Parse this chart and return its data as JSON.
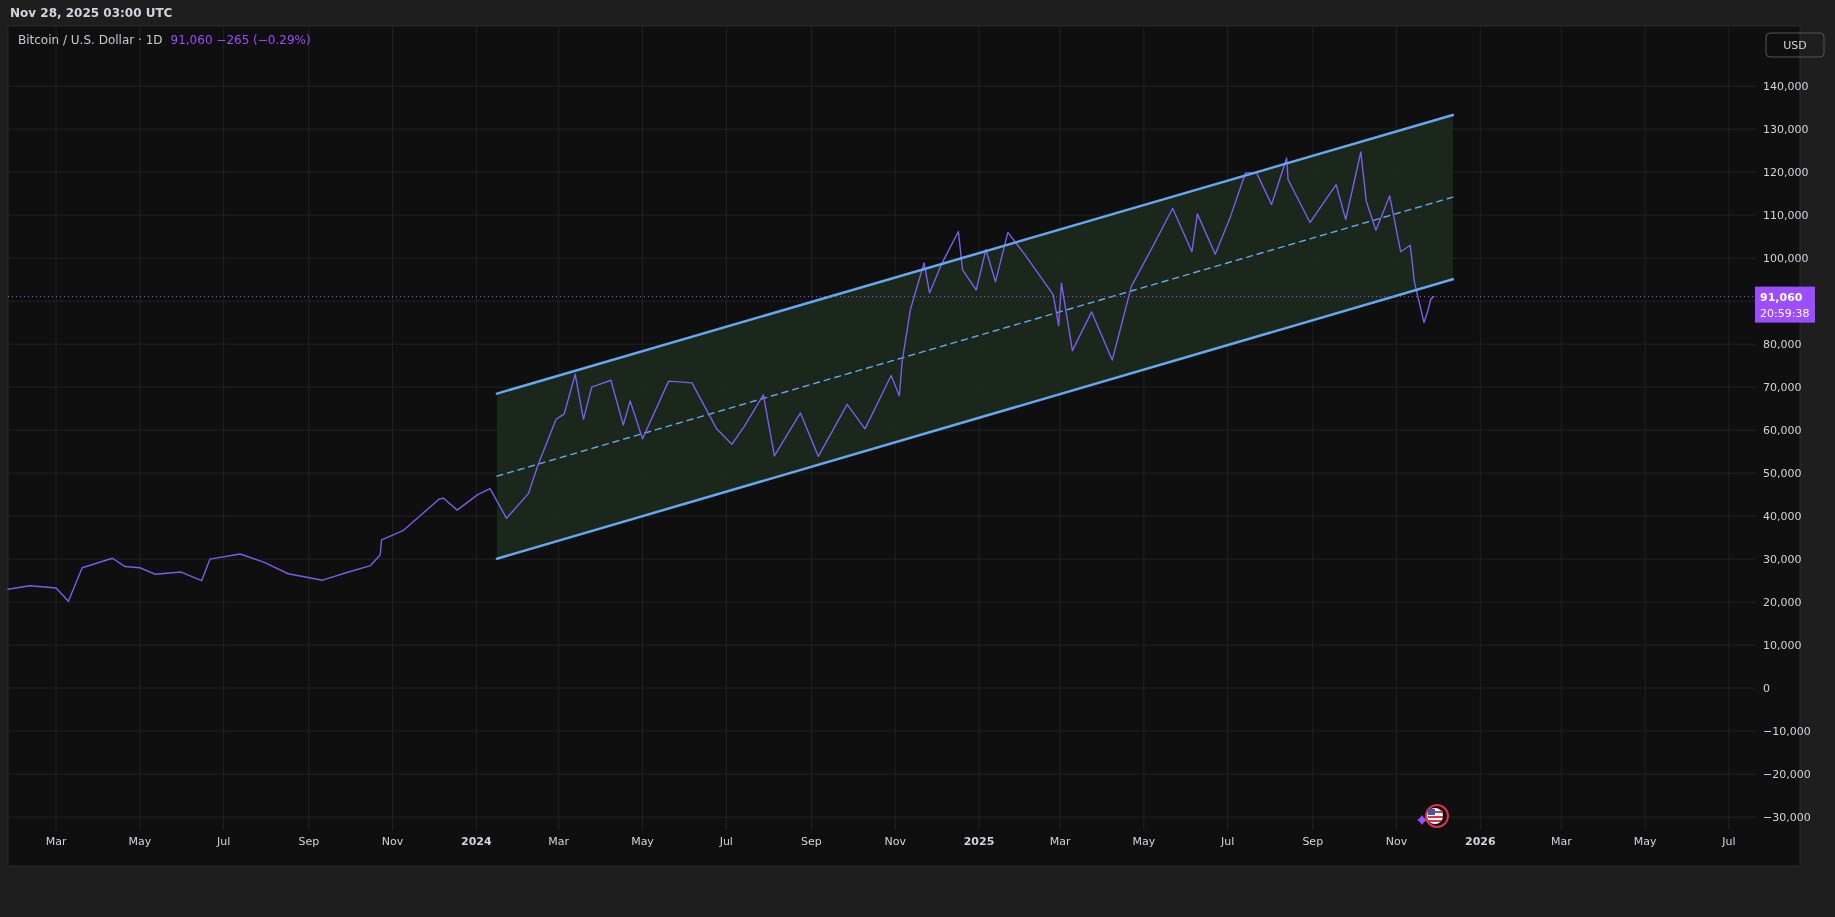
{
  "chart_data": {
    "type": "line",
    "title": "Bitcoin / U.S. Dollar · 1D",
    "subtitle": "91,060 −265 (−0.29%)",
    "annotations": [
      "Nov 28, 2025 03:00 UTC",
      "USD",
      "20:59:38"
    ],
    "x": [
      "2023-01-25",
      "2023-02-10",
      "2023-03-01",
      "2023-03-10",
      "2023-03-20",
      "2023-04-11",
      "2023-04-20",
      "2023-05-01",
      "2023-05-12",
      "2023-05-31",
      "2023-06-15",
      "2023-06-21",
      "2023-07-13",
      "2023-07-31",
      "2023-08-17",
      "2023-09-11",
      "2023-09-30",
      "2023-10-16",
      "2023-10-23",
      "2023-10-24",
      "2023-11-09",
      "2023-12-05",
      "2023-12-08",
      "2023-12-18",
      "2024-01-02",
      "2024-01-11",
      "2024-01-23",
      "2024-02-08",
      "2024-02-15",
      "2024-02-28",
      "2024-03-05",
      "2024-03-13",
      "2024-03-19",
      "2024-03-25",
      "2024-04-08",
      "2024-04-17",
      "2024-04-22",
      "2024-05-01",
      "2024-05-20",
      "2024-06-06",
      "2024-06-24",
      "2024-07-05",
      "2024-07-14",
      "2024-07-28",
      "2024-08-05",
      "2024-08-24",
      "2024-09-06",
      "2024-09-27",
      "2024-10-10",
      "2024-10-29",
      "2024-11-04",
      "2024-11-06",
      "2024-11-12",
      "2024-11-22",
      "2024-11-26",
      "2024-12-05",
      "2024-12-17",
      "2024-12-20",
      "2024-12-30",
      "2025-01-06",
      "2025-01-13",
      "2025-01-22",
      "2025-02-03",
      "2025-02-24",
      "2025-02-28",
      "2025-03-02",
      "2025-03-10",
      "2025-03-24",
      "2025-04-08",
      "2025-04-22",
      "2025-05-08",
      "2025-05-22",
      "2025-06-05",
      "2025-06-09",
      "2025-06-22",
      "2025-07-03",
      "2025-07-14",
      "2025-07-22",
      "2025-08-02",
      "2025-08-13",
      "2025-08-14",
      "2025-08-30",
      "2025-09-18",
      "2025-09-25",
      "2025-10-06",
      "2025-10-10",
      "2025-10-17",
      "2025-10-27",
      "2025-11-04",
      "2025-11-11",
      "2025-11-14",
      "2025-11-21",
      "2025-11-24",
      "2025-11-26",
      "2025-11-28"
    ],
    "series": [
      {
        "color": "#7b5cec",
        "values": [
          23000,
          23800,
          23300,
          20200,
          28000,
          30200,
          28300,
          28000,
          26500,
          27000,
          25000,
          30000,
          31200,
          29200,
          26600,
          25100,
          27000,
          28500,
          31000,
          34500,
          36700,
          44000,
          44200,
          41400,
          45000,
          46400,
          39500,
          45300,
          52000,
          62500,
          63800,
          73000,
          62500,
          70000,
          71600,
          61200,
          66800,
          58000,
          71400,
          71000,
          60300,
          56700,
          60800,
          68200,
          54000,
          64000,
          53900,
          66000,
          60300,
          72700,
          68000,
          75900,
          88000,
          98900,
          91900,
          98800,
          106200,
          97300,
          92600,
          102000,
          94500,
          106000,
          101000,
          91500,
          84300,
          94200,
          78500,
          87500,
          76300,
          93500,
          103000,
          111600,
          101500,
          110300,
          100900,
          109600,
          119800,
          119900,
          112500,
          123300,
          118300,
          108300,
          117100,
          109000,
          124700,
          113200,
          106500,
          114500,
          101500,
          103000,
          94500,
          85000,
          88000,
          90500,
          91060
        ]
      },
      {
        "type": "line",
        "x": [
          "2024-01-16",
          "2025-12-12"
        ],
        "color": "#64a8f0",
        "line_style": "dashed",
        "values": [
          49300,
          114200
        ],
        "lower": [
          30100,
          95100
        ],
        "upper": [
          68500,
          133300
        ]
      },
      {
        "type": "line",
        "x": [
          "2024-01-16",
          "2025-12-12"
        ],
        "color": "#64a8f0",
        "line_style": "solid",
        "values": [
          68500,
          133300
        ]
      },
      {
        "type": "line",
        "x": [
          "2024-01-16",
          "2025-12-12"
        ],
        "color": "#64a8f0",
        "line_style": "solid",
        "values": [
          30100,
          95100
        ]
      }
    ],
    "xlim": [
      "2023-01-25",
      "2026-07-20"
    ],
    "ylim": [
      -33000,
      154000
    ],
    "xticks": [
      {
        "value": "2023-03-01",
        "label": "Mar"
      },
      {
        "value": "2023-05-01",
        "label": "May"
      },
      {
        "value": "2023-07-01",
        "label": "Jul"
      },
      {
        "value": "2023-09-01",
        "label": "Sep"
      },
      {
        "value": "2023-11-01",
        "label": "Nov"
      },
      {
        "value": "2024-01-01",
        "label": "2024"
      },
      {
        "value": "2024-03-01",
        "label": "Mar"
      },
      {
        "value": "2024-05-01",
        "label": "May"
      },
      {
        "value": "2024-07-01",
        "label": "Jul"
      },
      {
        "value": "2024-09-01",
        "label": "Sep"
      },
      {
        "value": "2024-11-01",
        "label": "Nov"
      },
      {
        "value": "2025-01-01",
        "label": "2025"
      },
      {
        "value": "2025-03-01",
        "label": "Mar"
      },
      {
        "value": "2025-05-01",
        "label": "May"
      },
      {
        "value": "2025-07-01",
        "label": "Jul"
      },
      {
        "value": "2025-09-01",
        "label": "Sep"
      },
      {
        "value": "2025-11-01",
        "label": "Nov"
      },
      {
        "value": "2026-01-01",
        "label": "2026"
      },
      {
        "value": "2026-03-01",
        "label": "Mar"
      },
      {
        "value": "2026-05-01",
        "label": "May"
      },
      {
        "value": "2026-07-01",
        "label": "Jul"
      }
    ],
    "yticks": [
      {
        "value": -30000,
        "label": "−30,000"
      },
      {
        "value": -20000,
        "label": "−20,000"
      },
      {
        "value": -10000,
        "label": "−10,000"
      },
      0,
      {
        "value": 10000,
        "label": "10,000"
      },
      {
        "value": 20000,
        "label": "20,000"
      },
      {
        "value": 30000,
        "label": "30,000"
      },
      {
        "value": 40000,
        "label": "40,000"
      },
      {
        "value": 50000,
        "label": "50,000"
      },
      {
        "value": 60000,
        "label": "60,000"
      },
      {
        "value": 70000,
        "label": "70,000"
      },
      {
        "value": 80000,
        "label": "80,000"
      },
      {
        "value": 90000,
        "label": null
      },
      {
        "value": 100000,
        "label": "100,000"
      },
      {
        "value": 110000,
        "label": "110,000"
      },
      {
        "value": 120000,
        "label": "120,000"
      },
      {
        "value": 130000,
        "label": "130,000"
      },
      {
        "value": 140000,
        "label": "140,000"
      }
    ],
    "ref_lines": [
      {
        "axis": "y",
        "value": 91060,
        "label": "91,060",
        "color": "#9b4dff",
        "line_style": "dotted"
      }
    ],
    "grid": true
  }
}
